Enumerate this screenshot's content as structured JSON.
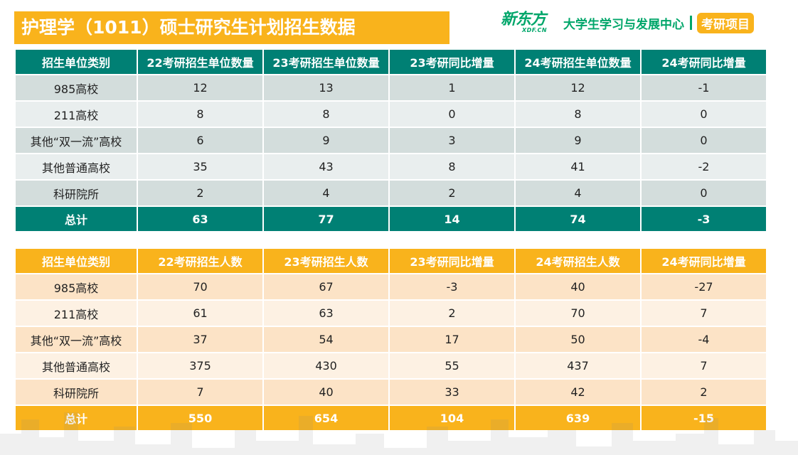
{
  "title": "护理学（1011）硕士研究生计划招生数据",
  "brand": {
    "logo_text": "新东方",
    "logo_sub": "XDF.CN",
    "center": "大学生学习与发展中心",
    "project": "考研项目"
  },
  "units_table": {
    "headers": [
      "招生单位类别",
      "22考研招生单位数量",
      "23考研招生单位数量",
      "23考研同比增量",
      "24考研招生单位数量",
      "24考研同比增量"
    ],
    "rows": [
      [
        "985高校",
        "12",
        "13",
        "1",
        "12",
        "-1"
      ],
      [
        "211高校",
        "8",
        "8",
        "0",
        "8",
        "0"
      ],
      [
        "其他“双一流”高校",
        "6",
        "9",
        "3",
        "9",
        "0"
      ],
      [
        "其他普通高校",
        "35",
        "43",
        "8",
        "41",
        "-2"
      ],
      [
        "科研院所",
        "2",
        "4",
        "2",
        "4",
        "0"
      ]
    ],
    "total": [
      "总计",
      "63",
      "77",
      "14",
      "74",
      "-3"
    ]
  },
  "people_table": {
    "headers": [
      "招生单位类别",
      "22考研招生人数",
      "23考研招生人数",
      "23考研同比增量",
      "24考研招生人数",
      "24考研同比增量"
    ],
    "rows": [
      [
        "985高校",
        "70",
        "67",
        "-3",
        "40",
        "-27"
      ],
      [
        "211高校",
        "61",
        "63",
        "2",
        "70",
        "7"
      ],
      [
        "其他“双一流”高校",
        "37",
        "54",
        "17",
        "50",
        "-4"
      ],
      [
        "其他普通高校",
        "375",
        "430",
        "55",
        "437",
        "7"
      ],
      [
        "科研院所",
        "7",
        "40",
        "33",
        "42",
        "2"
      ]
    ],
    "total": [
      "总计",
      "550",
      "654",
      "104",
      "639",
      "-15"
    ]
  },
  "colors": {
    "teal": "#008074",
    "orange": "#F9B31C",
    "brand_green": "#00A66A"
  }
}
